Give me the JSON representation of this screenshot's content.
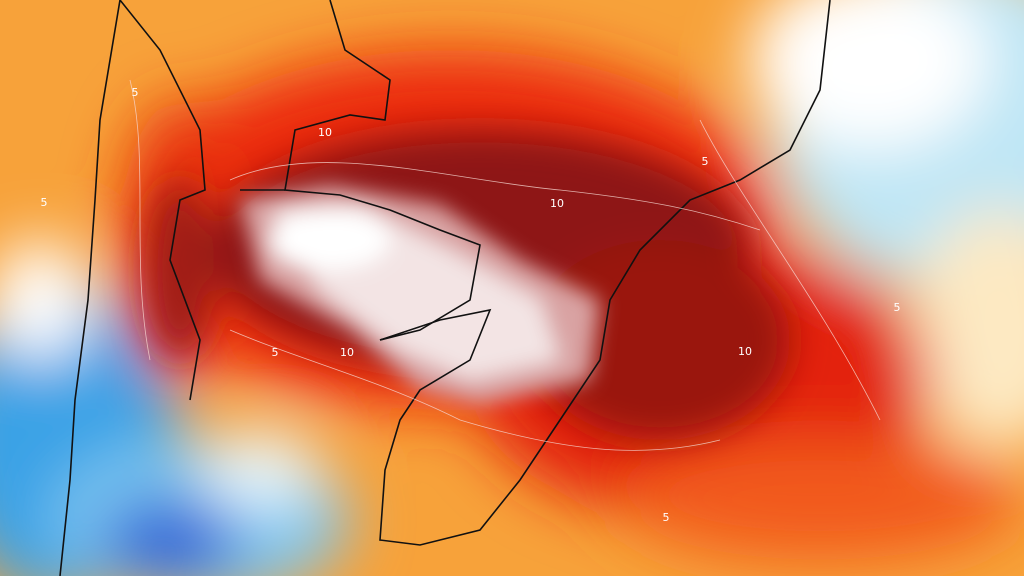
{
  "map": {
    "contour_labels": [
      10,
      10,
      10,
      10,
      5,
      5,
      5,
      5,
      5,
      5
    ]
  }
}
